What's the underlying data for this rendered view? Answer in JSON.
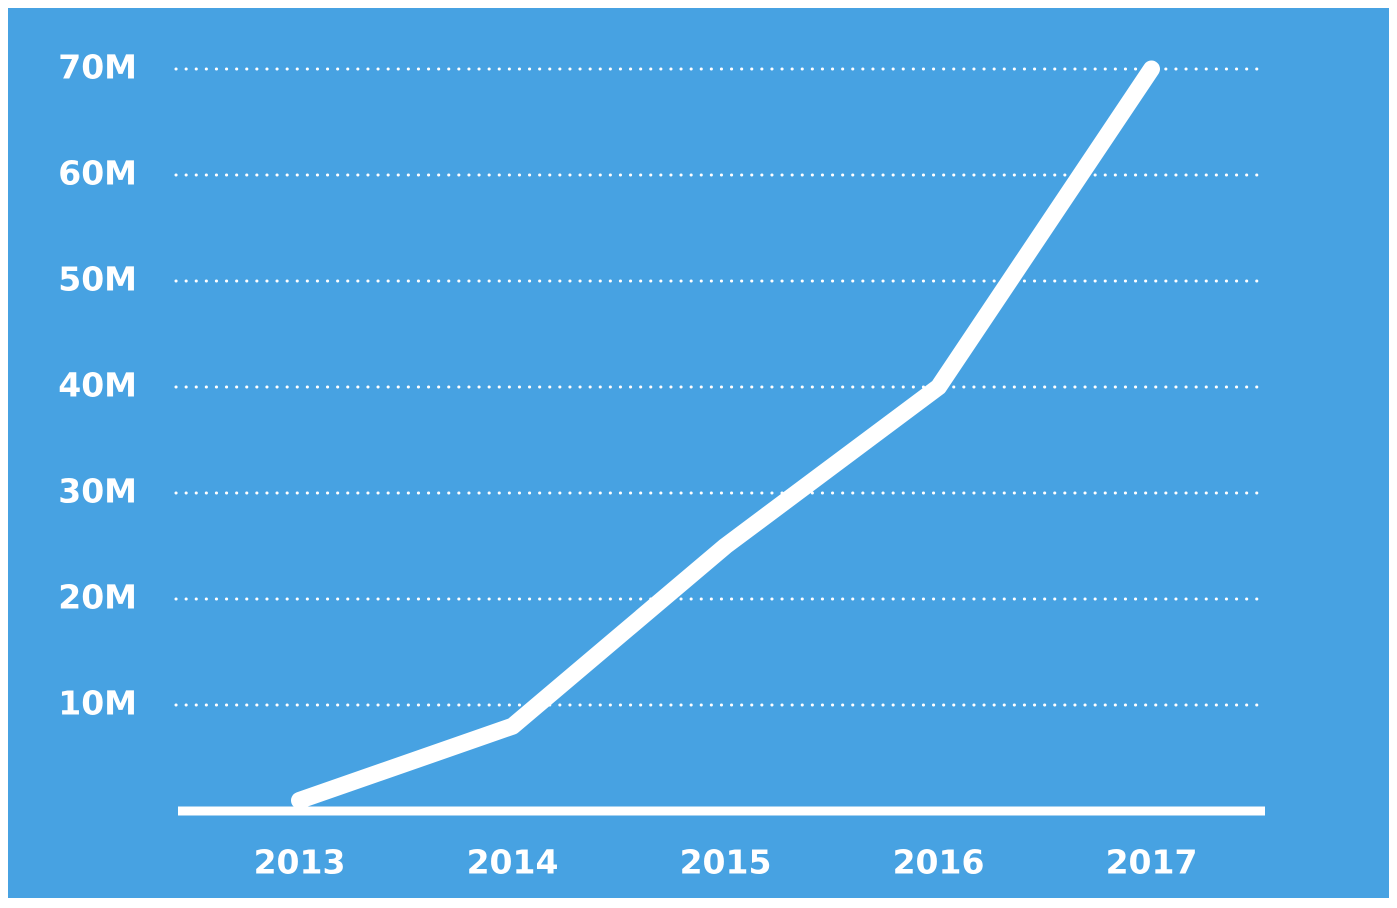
{
  "chart_data": {
    "type": "line",
    "categories": [
      "2013",
      "2014",
      "2015",
      "2016",
      "2017"
    ],
    "series": [
      {
        "color": "#ffffff",
        "values": [
          1000000,
          8000000,
          25000000,
          40000000,
          70000000
        ]
      }
    ],
    "ylim": [
      0,
      70000000
    ],
    "yticks": [
      {
        "value": 10000000,
        "label": "10M"
      },
      {
        "value": 20000000,
        "label": "20M"
      },
      {
        "value": 30000000,
        "label": "30M"
      },
      {
        "value": 40000000,
        "label": "40M"
      },
      {
        "value": 50000000,
        "label": "50M"
      },
      {
        "value": 60000000,
        "label": "60M"
      },
      {
        "value": 70000000,
        "label": "70M"
      }
    ],
    "grid": true,
    "background": "#47a2e2"
  }
}
